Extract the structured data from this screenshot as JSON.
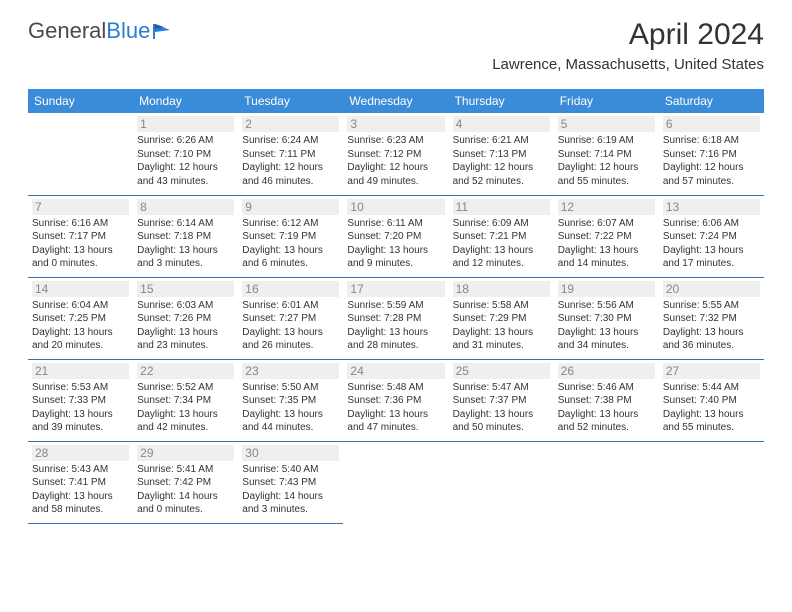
{
  "brand": {
    "name1": "General",
    "name2": "Blue"
  },
  "title": "April 2024",
  "location": "Lawrence, Massachusetts, United States",
  "colors": {
    "header_bg": "#3a8bd8",
    "header_text": "#ffffff",
    "row_border": "#3a6fa8",
    "daynum_bg": "#efefef",
    "daynum_text": "#888888",
    "body_text": "#333333",
    "brand_gray": "#4a4a4a",
    "brand_blue": "#2b7cd3",
    "page_bg": "#ffffff"
  },
  "day_headers": [
    "Sunday",
    "Monday",
    "Tuesday",
    "Wednesday",
    "Thursday",
    "Friday",
    "Saturday"
  ],
  "weeks": [
    [
      null,
      {
        "n": "1",
        "sr": "6:26 AM",
        "ss": "7:10 PM",
        "dl": "12 hours and 43 minutes."
      },
      {
        "n": "2",
        "sr": "6:24 AM",
        "ss": "7:11 PM",
        "dl": "12 hours and 46 minutes."
      },
      {
        "n": "3",
        "sr": "6:23 AM",
        "ss": "7:12 PM",
        "dl": "12 hours and 49 minutes."
      },
      {
        "n": "4",
        "sr": "6:21 AM",
        "ss": "7:13 PM",
        "dl": "12 hours and 52 minutes."
      },
      {
        "n": "5",
        "sr": "6:19 AM",
        "ss": "7:14 PM",
        "dl": "12 hours and 55 minutes."
      },
      {
        "n": "6",
        "sr": "6:18 AM",
        "ss": "7:16 PM",
        "dl": "12 hours and 57 minutes."
      }
    ],
    [
      {
        "n": "7",
        "sr": "6:16 AM",
        "ss": "7:17 PM",
        "dl": "13 hours and 0 minutes."
      },
      {
        "n": "8",
        "sr": "6:14 AM",
        "ss": "7:18 PM",
        "dl": "13 hours and 3 minutes."
      },
      {
        "n": "9",
        "sr": "6:12 AM",
        "ss": "7:19 PM",
        "dl": "13 hours and 6 minutes."
      },
      {
        "n": "10",
        "sr": "6:11 AM",
        "ss": "7:20 PM",
        "dl": "13 hours and 9 minutes."
      },
      {
        "n": "11",
        "sr": "6:09 AM",
        "ss": "7:21 PM",
        "dl": "13 hours and 12 minutes."
      },
      {
        "n": "12",
        "sr": "6:07 AM",
        "ss": "7:22 PM",
        "dl": "13 hours and 14 minutes."
      },
      {
        "n": "13",
        "sr": "6:06 AM",
        "ss": "7:24 PM",
        "dl": "13 hours and 17 minutes."
      }
    ],
    [
      {
        "n": "14",
        "sr": "6:04 AM",
        "ss": "7:25 PM",
        "dl": "13 hours and 20 minutes."
      },
      {
        "n": "15",
        "sr": "6:03 AM",
        "ss": "7:26 PM",
        "dl": "13 hours and 23 minutes."
      },
      {
        "n": "16",
        "sr": "6:01 AM",
        "ss": "7:27 PM",
        "dl": "13 hours and 26 minutes."
      },
      {
        "n": "17",
        "sr": "5:59 AM",
        "ss": "7:28 PM",
        "dl": "13 hours and 28 minutes."
      },
      {
        "n": "18",
        "sr": "5:58 AM",
        "ss": "7:29 PM",
        "dl": "13 hours and 31 minutes."
      },
      {
        "n": "19",
        "sr": "5:56 AM",
        "ss": "7:30 PM",
        "dl": "13 hours and 34 minutes."
      },
      {
        "n": "20",
        "sr": "5:55 AM",
        "ss": "7:32 PM",
        "dl": "13 hours and 36 minutes."
      }
    ],
    [
      {
        "n": "21",
        "sr": "5:53 AM",
        "ss": "7:33 PM",
        "dl": "13 hours and 39 minutes."
      },
      {
        "n": "22",
        "sr": "5:52 AM",
        "ss": "7:34 PM",
        "dl": "13 hours and 42 minutes."
      },
      {
        "n": "23",
        "sr": "5:50 AM",
        "ss": "7:35 PM",
        "dl": "13 hours and 44 minutes."
      },
      {
        "n": "24",
        "sr": "5:48 AM",
        "ss": "7:36 PM",
        "dl": "13 hours and 47 minutes."
      },
      {
        "n": "25",
        "sr": "5:47 AM",
        "ss": "7:37 PM",
        "dl": "13 hours and 50 minutes."
      },
      {
        "n": "26",
        "sr": "5:46 AM",
        "ss": "7:38 PM",
        "dl": "13 hours and 52 minutes."
      },
      {
        "n": "27",
        "sr": "5:44 AM",
        "ss": "7:40 PM",
        "dl": "13 hours and 55 minutes."
      }
    ],
    [
      {
        "n": "28",
        "sr": "5:43 AM",
        "ss": "7:41 PM",
        "dl": "13 hours and 58 minutes."
      },
      {
        "n": "29",
        "sr": "5:41 AM",
        "ss": "7:42 PM",
        "dl": "14 hours and 0 minutes."
      },
      {
        "n": "30",
        "sr": "5:40 AM",
        "ss": "7:43 PM",
        "dl": "14 hours and 3 minutes."
      },
      null,
      null,
      null,
      null
    ]
  ],
  "labels": {
    "sunrise": "Sunrise:",
    "sunset": "Sunset:",
    "daylight": "Daylight:"
  }
}
